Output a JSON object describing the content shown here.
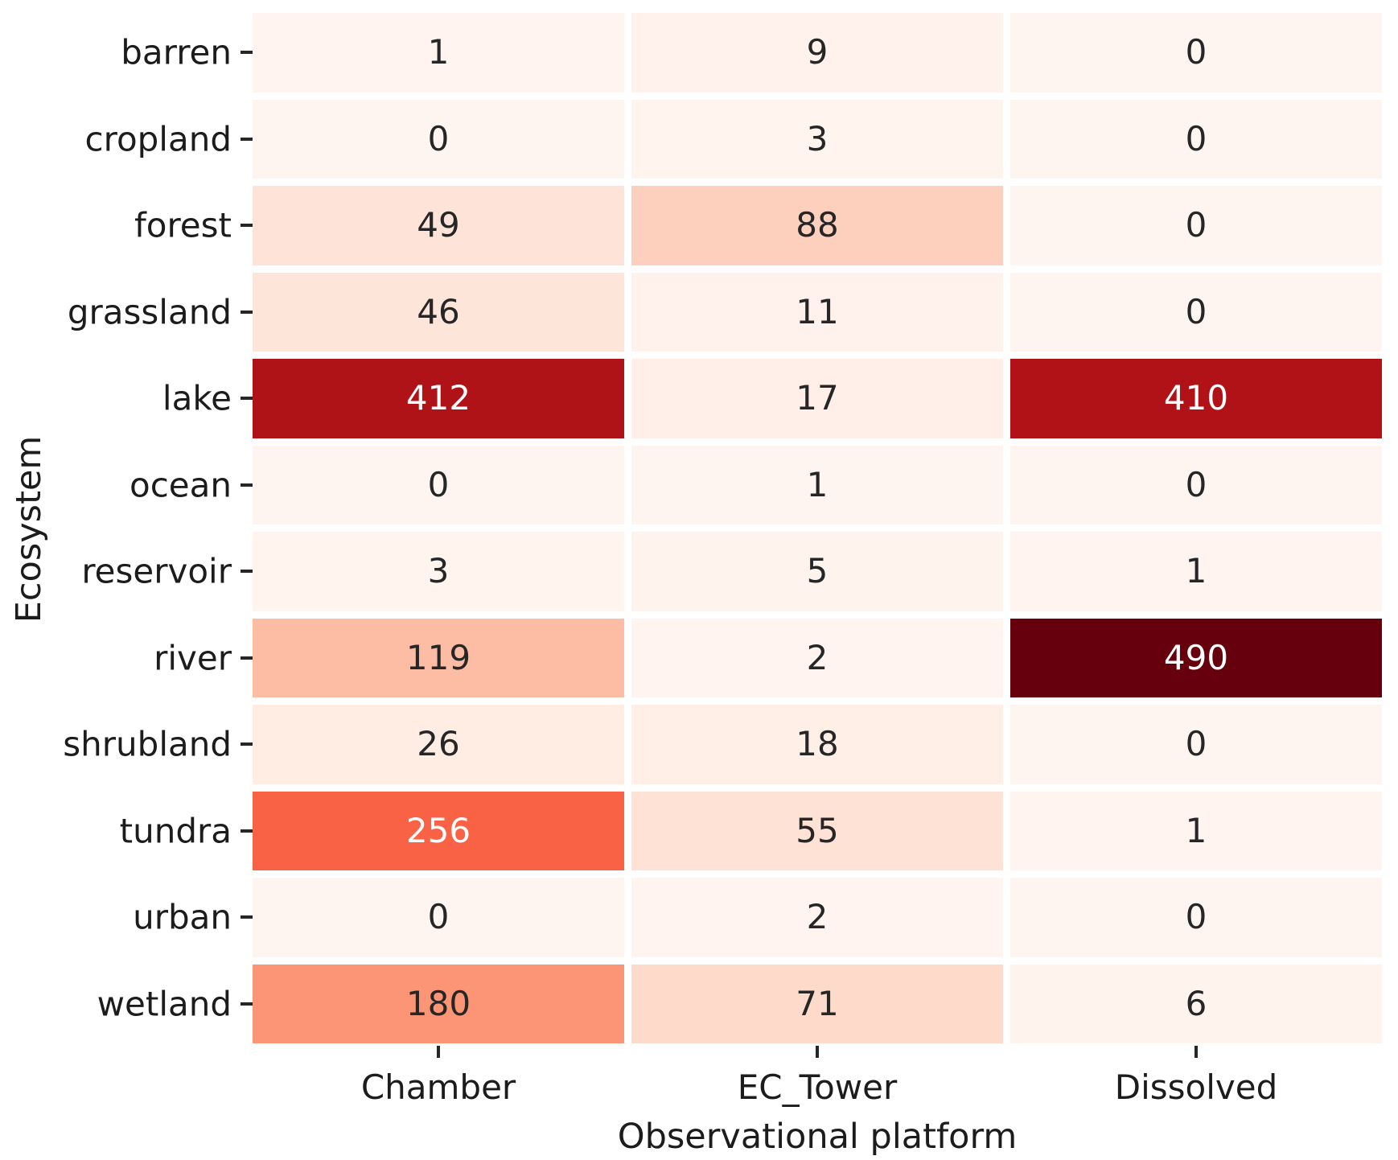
{
  "chart_data": {
    "type": "heatmap",
    "title": "",
    "xlabel": "Observational platform",
    "ylabel": "Ecosystem",
    "columns": [
      "Chamber",
      "EC_Tower",
      "Dissolved"
    ],
    "rows": [
      "barren",
      "cropland",
      "forest",
      "grassland",
      "lake",
      "ocean",
      "reservoir",
      "river",
      "shrubland",
      "tundra",
      "urban",
      "wetland"
    ],
    "values": [
      [
        1,
        9,
        0
      ],
      [
        0,
        3,
        0
      ],
      [
        49,
        88,
        0
      ],
      [
        46,
        11,
        0
      ],
      [
        412,
        17,
        410
      ],
      [
        0,
        1,
        0
      ],
      [
        3,
        5,
        1
      ],
      [
        119,
        2,
        490
      ],
      [
        26,
        18,
        0
      ],
      [
        256,
        55,
        1
      ],
      [
        0,
        2,
        0
      ],
      [
        180,
        71,
        6
      ]
    ],
    "cell_colors": [
      [
        "#fff4ef",
        "#fff2ec",
        "#fff5f0"
      ],
      [
        "#fff5f0",
        "#fff4ee",
        "#fff5f0"
      ],
      [
        "#fee4d8",
        "#fdd0bd",
        "#fff5f0"
      ],
      [
        "#fee5d9",
        "#fff1eb",
        "#fff5f0"
      ],
      [
        "#af1217",
        "#ffefe8",
        "#b11217"
      ],
      [
        "#fff5f0",
        "#fff5f0",
        "#fff5f0"
      ],
      [
        "#fff4ee",
        "#fff3ee",
        "#fff4ef"
      ],
      [
        "#fcbda4",
        "#fff4ef",
        "#67000d"
      ],
      [
        "#ffece3",
        "#ffefe7",
        "#fff5f0"
      ],
      [
        "#f96245",
        "#fee2d5",
        "#fff4ef"
      ],
      [
        "#fff5f0",
        "#fff4ef",
        "#fff5f0"
      ],
      [
        "#fc9575",
        "#fedaca",
        "#fff3ed"
      ]
    ],
    "annotation_dark_color": "#262626",
    "annotation_light_color": "#ffffff",
    "colormap": "Reds",
    "vmin": 0,
    "vmax": 490,
    "legend": "none",
    "grid": "off"
  }
}
